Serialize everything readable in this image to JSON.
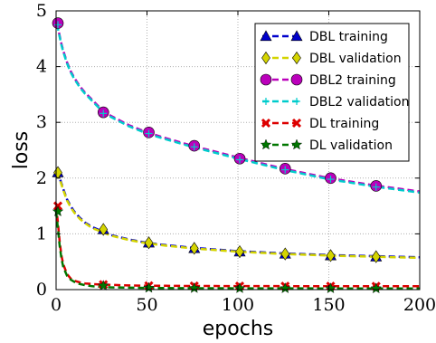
{
  "chart_data": {
    "type": "line",
    "title": "",
    "xlabel": "epochs",
    "ylabel": "loss",
    "xlim": [
      0,
      200
    ],
    "ylim": [
      0,
      5
    ],
    "xticks": [
      "0",
      "50",
      "100",
      "150",
      "200"
    ],
    "yticks": [
      "0",
      "1",
      "2",
      "3",
      "4",
      "5"
    ],
    "grid": true,
    "legend_position": "top-right",
    "x": [
      0,
      1,
      2,
      3,
      4,
      6,
      8,
      10,
      13,
      16,
      20,
      25,
      30,
      40,
      50,
      60,
      75,
      100,
      125,
      150,
      175,
      200
    ],
    "marker_x": [
      1,
      26,
      51,
      76,
      101,
      126,
      151,
      176
    ],
    "series": [
      {
        "name": "DBL training",
        "color": "#0000cc",
        "marker": "triangle",
        "values": [
          2.13,
          2.08,
          2.0,
          1.9,
          1.8,
          1.62,
          1.5,
          1.4,
          1.29,
          1.2,
          1.12,
          1.05,
          0.98,
          0.9,
          0.84,
          0.8,
          0.75,
          0.69,
          0.65,
          0.62,
          0.6,
          0.58
        ],
        "markers": [
          2.1,
          1.08,
          0.84,
          0.74,
          0.68,
          0.64,
          0.61,
          0.59
        ]
      },
      {
        "name": "DBL validation",
        "color": "#d4d400",
        "marker": "diamond",
        "values": [
          2.1,
          2.06,
          1.98,
          1.88,
          1.78,
          1.6,
          1.48,
          1.38,
          1.27,
          1.19,
          1.1,
          1.04,
          0.97,
          0.89,
          0.83,
          0.79,
          0.74,
          0.68,
          0.64,
          0.61,
          0.59,
          0.57
        ],
        "markers": [
          2.1,
          1.08,
          0.84,
          0.74,
          0.68,
          0.64,
          0.61,
          0.59
        ]
      },
      {
        "name": "DBL2 training",
        "color": "#bb00bb",
        "marker": "circle",
        "values": [
          4.78,
          4.7,
          4.55,
          4.4,
          4.28,
          4.08,
          3.92,
          3.8,
          3.65,
          3.53,
          3.4,
          3.23,
          3.12,
          2.95,
          2.82,
          2.72,
          2.58,
          2.37,
          2.17,
          2.0,
          1.87,
          1.76
        ],
        "markers": [
          4.78,
          3.18,
          2.82,
          2.58,
          2.35,
          2.17,
          2.0,
          1.86
        ]
      },
      {
        "name": "DBL2 validation",
        "color": "#00cccc",
        "marker": "plus",
        "values": [
          4.75,
          4.68,
          4.53,
          4.38,
          4.26,
          4.06,
          3.9,
          3.78,
          3.63,
          3.51,
          3.38,
          3.21,
          3.1,
          2.93,
          2.8,
          2.7,
          2.56,
          2.35,
          2.15,
          1.98,
          1.85,
          1.74
        ],
        "markers": [
          4.75,
          3.16,
          2.8,
          2.56,
          2.33,
          2.15,
          1.98,
          1.84
        ]
      },
      {
        "name": "DL training",
        "color": "#dd0000",
        "marker": "x",
        "values": [
          1.5,
          1.2,
          0.85,
          0.6,
          0.45,
          0.28,
          0.2,
          0.16,
          0.13,
          0.11,
          0.1,
          0.09,
          0.085,
          0.075,
          0.07,
          0.068,
          0.065,
          0.063,
          0.062,
          0.061,
          0.06,
          0.06
        ],
        "markers": [
          1.5,
          0.09,
          0.07,
          0.065,
          0.063,
          0.062,
          0.061,
          0.06
        ]
      },
      {
        "name": "DL validation",
        "color": "#007700",
        "marker": "star",
        "values": [
          1.4,
          1.1,
          0.78,
          0.55,
          0.4,
          0.25,
          0.18,
          0.14,
          0.1,
          0.08,
          0.06,
          0.05,
          0.04,
          0.035,
          0.03,
          0.028,
          0.025,
          0.023,
          0.022,
          0.021,
          0.02,
          0.02
        ],
        "markers": [
          1.4,
          0.07,
          0.03,
          0.025,
          0.023,
          0.022,
          0.021,
          0.02
        ]
      }
    ]
  }
}
